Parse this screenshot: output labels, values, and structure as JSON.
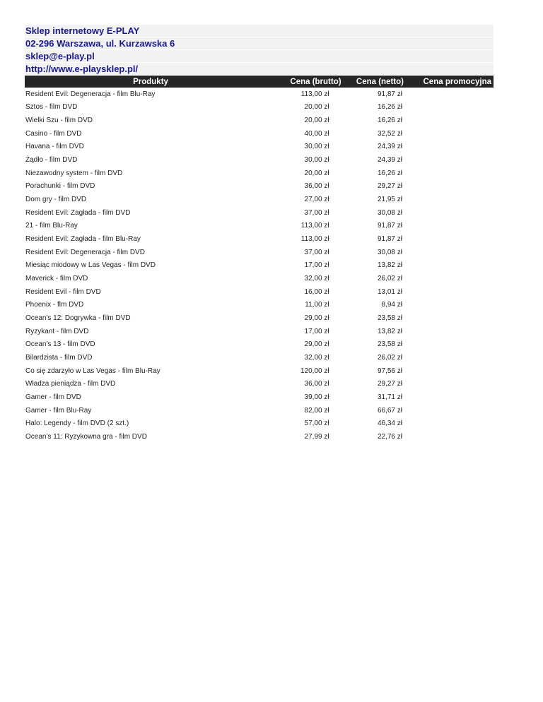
{
  "store": {
    "name": "Sklep internetowy E-PLAY",
    "address": "02-296 Warszawa, ul. Kurzawska 6",
    "email": "sklep@e-play.pl",
    "website": "http://www.e-playsklep.pl/"
  },
  "table": {
    "headers": [
      "Produkty",
      "Cena  (brutto)",
      "Cena  (netto)",
      "Cena promocyjna"
    ],
    "rows": [
      [
        "Resident Evil: Degeneracja - film Blu-Ray",
        "113,00 zł",
        "91,87 zł",
        ""
      ],
      [
        "Sztos - film DVD",
        "20,00 zł",
        "16,26 zł",
        ""
      ],
      [
        "Wielki Szu - film DVD",
        "20,00 zł",
        "16,26 zł",
        ""
      ],
      [
        "Casino - film DVD",
        "40,00 zł",
        "32,52 zł",
        ""
      ],
      [
        "Havana - film DVD",
        "30,00 zł",
        "24,39 zł",
        ""
      ],
      [
        "Żądło - film DVD",
        "30,00 zł",
        "24,39 zł",
        ""
      ],
      [
        "Niezawodny system - film DVD",
        "20,00 zł",
        "16,26 zł",
        ""
      ],
      [
        "Porachunki - film DVD",
        "36,00 zł",
        "29,27 zł",
        ""
      ],
      [
        "Dom gry - film DVD",
        "27,00 zł",
        "21,95 zł",
        ""
      ],
      [
        "Resident Evil: Zagłada - film DVD",
        "37,00 zł",
        "30,08 zł",
        ""
      ],
      [
        "21 - film Blu-Ray",
        "113,00 zł",
        "91,87 zł",
        ""
      ],
      [
        "Resident Evil: Zagłada - film Blu-Ray",
        "113,00 zł",
        "91,87 zł",
        ""
      ],
      [
        "Resident Evil: Degeneracja - film DVD",
        "37,00 zł",
        "30,08 zł",
        ""
      ],
      [
        "Miesiąc miodowy w Las Vegas - film DVD",
        "17,00 zł",
        "13,82 zł",
        ""
      ],
      [
        "Maverick - film DVD",
        "32,00 zł",
        "26,02 zł",
        ""
      ],
      [
        "Resident Evil - film DVD",
        "16,00 zł",
        "13,01 zł",
        ""
      ],
      [
        "Phoenix - flm DVD",
        "11,00 zł",
        "8,94 zł",
        ""
      ],
      [
        "Ocean's 12: Dogrywka - film DVD",
        "29,00 zł",
        "23,58 zł",
        ""
      ],
      [
        "Ryzykant - film DVD",
        "17,00 zł",
        "13,82 zł",
        ""
      ],
      [
        "Ocean's 13 - film DVD",
        "29,00 zł",
        "23,58 zł",
        ""
      ],
      [
        "Bilardzista - film DVD",
        "32,00 zł",
        "26,02 zł",
        ""
      ],
      [
        "Co się zdarzyło w Las Vegas - film Blu-Ray",
        "120,00 zł",
        "97,56 zł",
        ""
      ],
      [
        "Władza pieniądza - film DVD",
        "36,00 zł",
        "29,27 zł",
        ""
      ],
      [
        "Gamer - film DVD",
        "39,00 zł",
        "31,71 zł",
        ""
      ],
      [
        "Gamer - film Blu-Ray",
        "82,00 zł",
        "66,67 zł",
        ""
      ],
      [
        "Halo: Legendy - film DVD (2 szt.)",
        "57,00 zł",
        "46,34 zł",
        ""
      ],
      [
        "Ocean’s 11: Ryzykowna gra - film DVD",
        "27,99 zł",
        "22,76 zł",
        ""
      ]
    ]
  }
}
